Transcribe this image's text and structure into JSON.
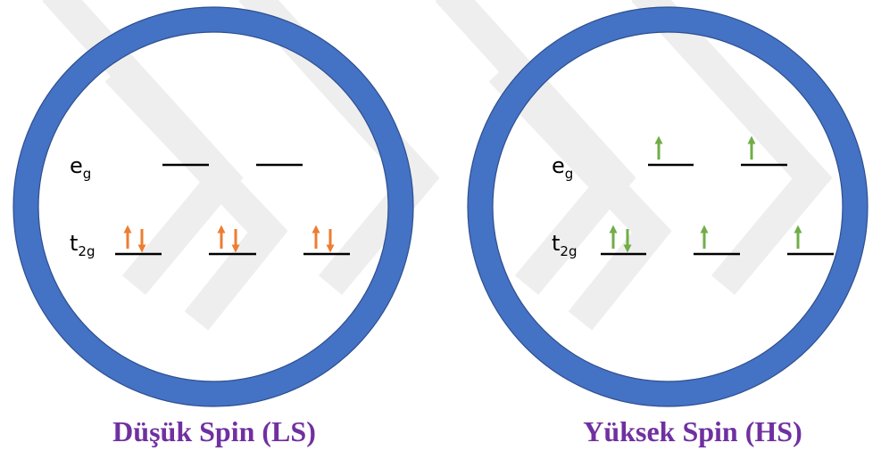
{
  "colors": {
    "ring": "#4472c4",
    "ring_outline": "#2f4f8f",
    "watermark": "#eeeeee",
    "level": "#000000",
    "ls_electron": "#ed7d31",
    "hs_electron": "#70ad47",
    "caption": "#7030a0"
  },
  "level_labels": {
    "eg_base": "e",
    "eg_sub": "g",
    "t2g_base": "t",
    "t2g_sub": "2g"
  },
  "panels": [
    {
      "caption": "Düşük Spin (LS)",
      "electron_color_key": "ls_electron",
      "eg_electrons": [
        "",
        ""
      ],
      "t2g_electrons": [
        "up-down",
        "up-down",
        "up-down"
      ]
    },
    {
      "caption": "Yüksek Spin (HS)",
      "electron_color_key": "hs_electron",
      "eg_electrons": [
        "up",
        "up"
      ],
      "t2g_electrons": [
        "up-down",
        "up",
        "up"
      ]
    }
  ]
}
